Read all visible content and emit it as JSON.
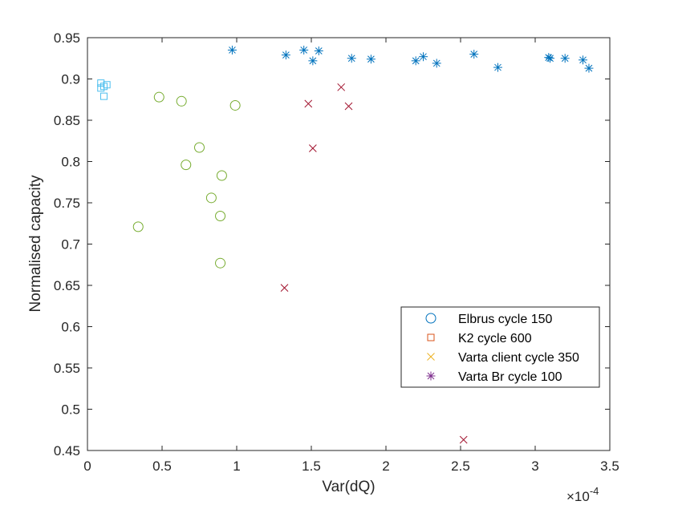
{
  "chart_data": {
    "type": "scatter",
    "xlabel": "Var(dQ)",
    "ylabel": "Normalised capacity",
    "x_multiplier_label": "×10",
    "x_multiplier_exponent": "-4",
    "xlim": [
      0,
      3.5
    ],
    "ylim": [
      0.45,
      0.95
    ],
    "x_ticks": [
      0,
      0.5,
      1,
      1.5,
      2,
      2.5,
      3,
      3.5
    ],
    "x_tick_labels": [
      "0",
      "0.5",
      "1",
      "1.5",
      "2",
      "2.5",
      "3",
      "3.5"
    ],
    "y_ticks": [
      0.45,
      0.5,
      0.55,
      0.6,
      0.65,
      0.7,
      0.75,
      0.8,
      0.85,
      0.9,
      0.95
    ],
    "y_tick_labels": [
      "0.45",
      "0.5",
      "0.55",
      "0.6",
      "0.65",
      "0.7",
      "0.75",
      "0.8",
      "0.85",
      "0.9",
      "0.95"
    ],
    "grid": false,
    "legend_position": "bottom-right",
    "legend": [
      {
        "label": "Elbrus cycle 150",
        "marker": "circle",
        "color": "#0072BD"
      },
      {
        "label": "K2 cycle 600",
        "marker": "square",
        "color": "#D95319"
      },
      {
        "label": "Varta client cycle 350",
        "marker": "x",
        "color": "#EDB120"
      },
      {
        "label": "Varta Br cycle 100",
        "marker": "asterisk",
        "color": "#7E2F8E"
      }
    ],
    "series": [
      {
        "marker": "square",
        "color": "#4DBEEE",
        "points": [
          [
            0.09,
            0.895
          ],
          [
            0.09,
            0.889
          ],
          [
            0.11,
            0.891
          ],
          [
            0.13,
            0.893
          ],
          [
            0.11,
            0.879
          ]
        ]
      },
      {
        "marker": "circle",
        "color": "#77AC30",
        "points": [
          [
            0.34,
            0.721
          ],
          [
            0.48,
            0.878
          ],
          [
            0.63,
            0.873
          ],
          [
            0.66,
            0.796
          ],
          [
            0.75,
            0.817
          ],
          [
            0.83,
            0.756
          ],
          [
            0.89,
            0.734
          ],
          [
            0.9,
            0.783
          ],
          [
            0.89,
            0.677
          ],
          [
            0.99,
            0.868
          ]
        ]
      },
      {
        "marker": "x",
        "color": "#A2142F",
        "points": [
          [
            1.32,
            0.647
          ],
          [
            1.48,
            0.87
          ],
          [
            1.51,
            0.816
          ],
          [
            1.7,
            0.89
          ],
          [
            1.75,
            0.867
          ],
          [
            2.52,
            0.463
          ]
        ]
      },
      {
        "marker": "asterisk",
        "color": "#0072BD",
        "points": [
          [
            0.97,
            0.935
          ],
          [
            1.33,
            0.929
          ],
          [
            1.45,
            0.935
          ],
          [
            1.51,
            0.922
          ],
          [
            1.55,
            0.934
          ],
          [
            1.77,
            0.925
          ],
          [
            1.9,
            0.924
          ],
          [
            2.2,
            0.922
          ],
          [
            2.25,
            0.927
          ],
          [
            2.34,
            0.919
          ],
          [
            2.59,
            0.93
          ],
          [
            2.75,
            0.914
          ],
          [
            3.09,
            0.926
          ],
          [
            3.1,
            0.925
          ],
          [
            3.2,
            0.925
          ],
          [
            3.32,
            0.923
          ],
          [
            3.36,
            0.913
          ]
        ]
      }
    ]
  }
}
